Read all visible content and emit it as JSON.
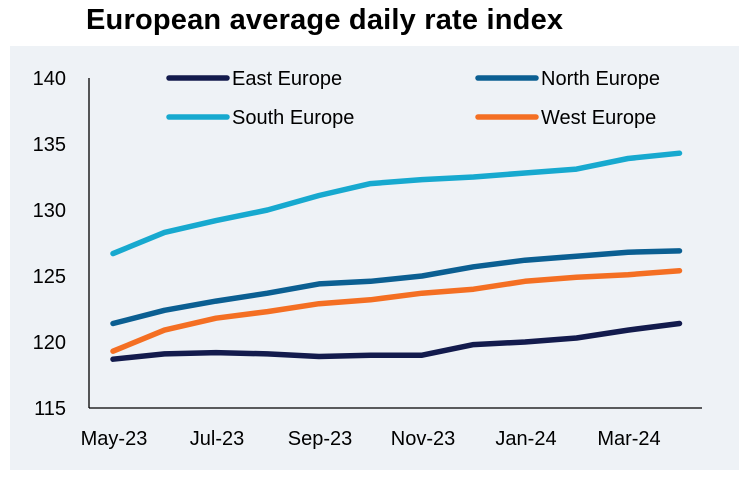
{
  "chart_data": {
    "type": "line",
    "title": "European average daily rate index",
    "xlabel": "",
    "ylabel": "",
    "ylim": [
      115,
      140
    ],
    "yticks": [
      "140",
      "135",
      "130",
      "125",
      "120",
      "115"
    ],
    "xtick_labels": [
      "May-23",
      "Jul-23",
      "Sep-23",
      "Nov-23",
      "Jan-24",
      "Mar-24"
    ],
    "x": [
      "May-23",
      "Jun-23",
      "Jul-23",
      "Aug-23",
      "Sep-23",
      "Oct-23",
      "Nov-23",
      "Dec-23",
      "Jan-24",
      "Feb-24",
      "Mar-24",
      "Apr-24"
    ],
    "grid": false,
    "legend_position": "top",
    "series": [
      {
        "name": "East Europe",
        "color": "#131b4d",
        "values": [
          118.7,
          119.1,
          119.2,
          119.1,
          118.9,
          119.0,
          119.0,
          119.8,
          120.0,
          120.3,
          120.9,
          121.4
        ]
      },
      {
        "name": "North Europe",
        "color": "#0b5f92",
        "values": [
          121.4,
          122.4,
          123.1,
          123.7,
          124.4,
          124.6,
          125.0,
          125.7,
          126.2,
          126.5,
          126.8,
          126.9
        ]
      },
      {
        "name": "South Europe",
        "color": "#17a9cf",
        "values": [
          126.7,
          128.3,
          129.2,
          130.0,
          131.1,
          132.0,
          132.3,
          132.5,
          132.8,
          133.1,
          133.9,
          134.3
        ]
      },
      {
        "name": "West Europe",
        "color": "#f46f23",
        "values": [
          119.3,
          120.9,
          121.8,
          122.3,
          122.9,
          123.2,
          123.7,
          124.0,
          124.6,
          124.9,
          125.1,
          125.4
        ]
      }
    ]
  }
}
